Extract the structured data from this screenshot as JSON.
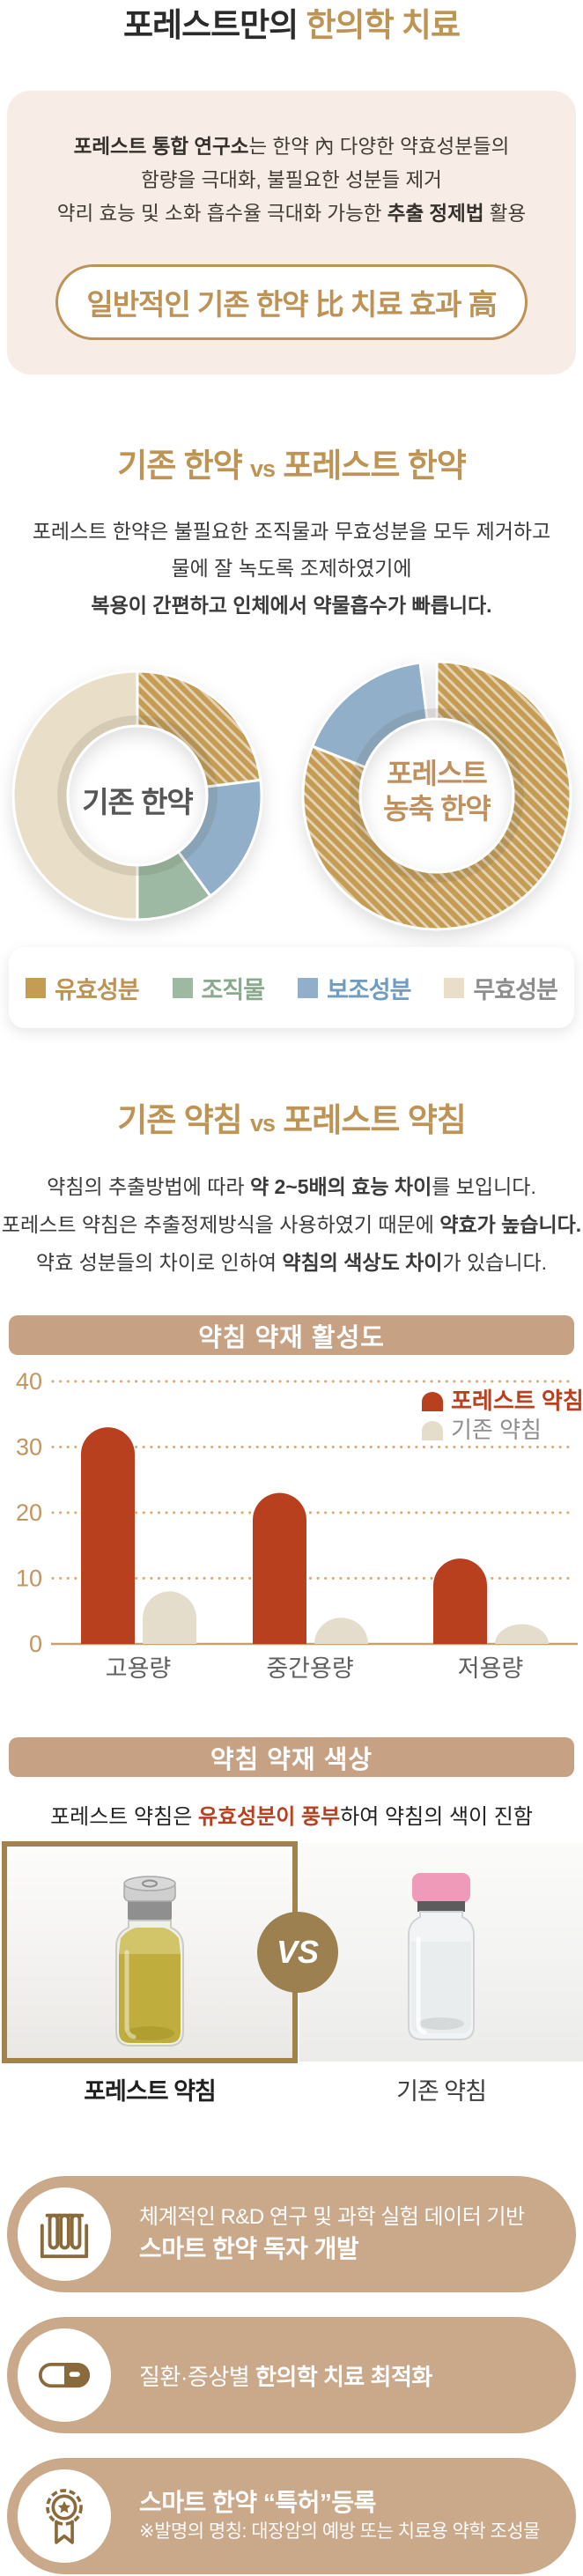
{
  "header": {
    "title_dark": "포레스트만의 ",
    "title_gold": "한의학 치료"
  },
  "intro": {
    "l1_bold": "포레스트 통합 연구소",
    "l1_rest": "는 한약 內 다양한 약효성분들의",
    "l2": "함량을 극대화, 불필요한 성분들 제거",
    "l3_pre": "약리 효능 및 소화 흡수율 극대화 가능한 ",
    "l3_bold": "추출 정제법",
    "l3_post": " 활용",
    "badge": "일반적인 기존 한약 比 치료 효과 高"
  },
  "herb": {
    "t_left": "기존 한약",
    "t_vs": "vs",
    "t_right": "포레스트 한약",
    "d1": "포레스트 한약은 불필요한 조직물과 무효성분을 모두 제거하고",
    "d2": "물에 잘 녹도록 조제하였기에",
    "d3": "복용이 간편하고 인체에서 약물흡수가 빠릅니다.",
    "donut_left_label": "기존 한약",
    "donut_right_line1": "포레스트",
    "donut_right_line2": "농축 한약"
  },
  "donut_legend": [
    {
      "label": "유효성분",
      "color": "#c49c54",
      "text_color": "#bd9254"
    },
    {
      "label": "조직물",
      "color": "#9db9a3",
      "text_color": "#8aa98f"
    },
    {
      "label": "보조성분",
      "color": "#92afc9",
      "text_color": "#6f9cc0"
    },
    {
      "label": "무효성분",
      "color": "#e9dfc9",
      "text_color": "#8d8d8d"
    }
  ],
  "acu": {
    "t_left": "기존 약침",
    "t_vs": "vs",
    "t_right": "포레스트 약침",
    "d1_pre": "약침의 추출방법에 따라 ",
    "d1_bold": "약 2~5배의 효능 차이",
    "d1_post": "를 보입니다.",
    "d2_pre": "포레스트 약침은 추출정제방식을 사용하였기 때문에 ",
    "d2_bold": "약효가 높습니다.",
    "d3_pre": "약효 성분들의 차이로 인하여 ",
    "d3_bold": "약침의 색상도 차이",
    "d3_post": "가 있습니다."
  },
  "color_section": {
    "header": "약침 약재 색상",
    "d_pre": "포레스트 약침은 ",
    "d_bold": "유효성분이 풍부",
    "d_post": "하여 약침의 색이 진함",
    "vs": "VS",
    "left_label": "포레스트 약침",
    "right_label": "기존 약침"
  },
  "features": [
    {
      "icon": "test-tubes-icon",
      "line1": "체계적인 R&D 연구 및 과학 실험 데이터 기반",
      "line2": "스마트 한약 독자 개발"
    },
    {
      "icon": "capsule-icon",
      "line1_pre": "질환·증상별 ",
      "line1_bold": "한의학 치료 최적화"
    },
    {
      "icon": "award-ribbon-icon",
      "line1": "스마트 한약 “특허”등록",
      "line2": "※발명의 명칭: 대장암의 예방 또는 치료용 약학 조성물"
    }
  ],
  "colors": {
    "accent_gold": "#bd9454",
    "intro_bg": "#f7ede6",
    "tan_header": "#c7a183",
    "pill_tan": "#c9a98a",
    "icon_brown": "#8a6a3a",
    "bar_red": "#b8401f",
    "bar_beige": "#e5ddcc",
    "axis_tan": "#c2955c",
    "vs_circle": "#9c8050"
  },
  "chart_data": [
    {
      "type": "pie",
      "variant": "donut",
      "title": "기존 한약",
      "segments": [
        {
          "name": "유효성분",
          "value": 23,
          "color": "#c49c54",
          "hatch": true
        },
        {
          "name": "보조성분",
          "value": 17,
          "color": "#92afc9",
          "hatch": false
        },
        {
          "name": "조직물",
          "value": 10,
          "color": "#9db9a3",
          "hatch": false
        },
        {
          "name": "무효성분",
          "value": 50,
          "color": "#e9dfc9",
          "hatch": false
        }
      ]
    },
    {
      "type": "pie",
      "variant": "donut",
      "title": "포레스트 농축 한약",
      "segments": [
        {
          "name": "유효성분",
          "value": 81,
          "color": "#c49c54",
          "hatch": true
        },
        {
          "name": "보조성분",
          "value": 17,
          "color": "#92afc9",
          "hatch": false
        }
      ],
      "gap_value": 2
    },
    {
      "type": "bar",
      "title": "약침 약재 활성도",
      "categories": [
        "고용량",
        "중간용량",
        "저용량"
      ],
      "series": [
        {
          "name": "포레스트 약침",
          "color": "#b8401f",
          "text_color": "#b8401f",
          "values": [
            33,
            23,
            13
          ]
        },
        {
          "name": "기존 약침",
          "color": "#e5ddcc",
          "text_color": "#8e8e8e",
          "values": [
            8,
            4,
            3
          ]
        }
      ],
      "ylim": [
        0,
        40
      ],
      "yticks": [
        0,
        10,
        20,
        30,
        40
      ],
      "grid": "dotted",
      "legend_position": "top-right"
    }
  ]
}
